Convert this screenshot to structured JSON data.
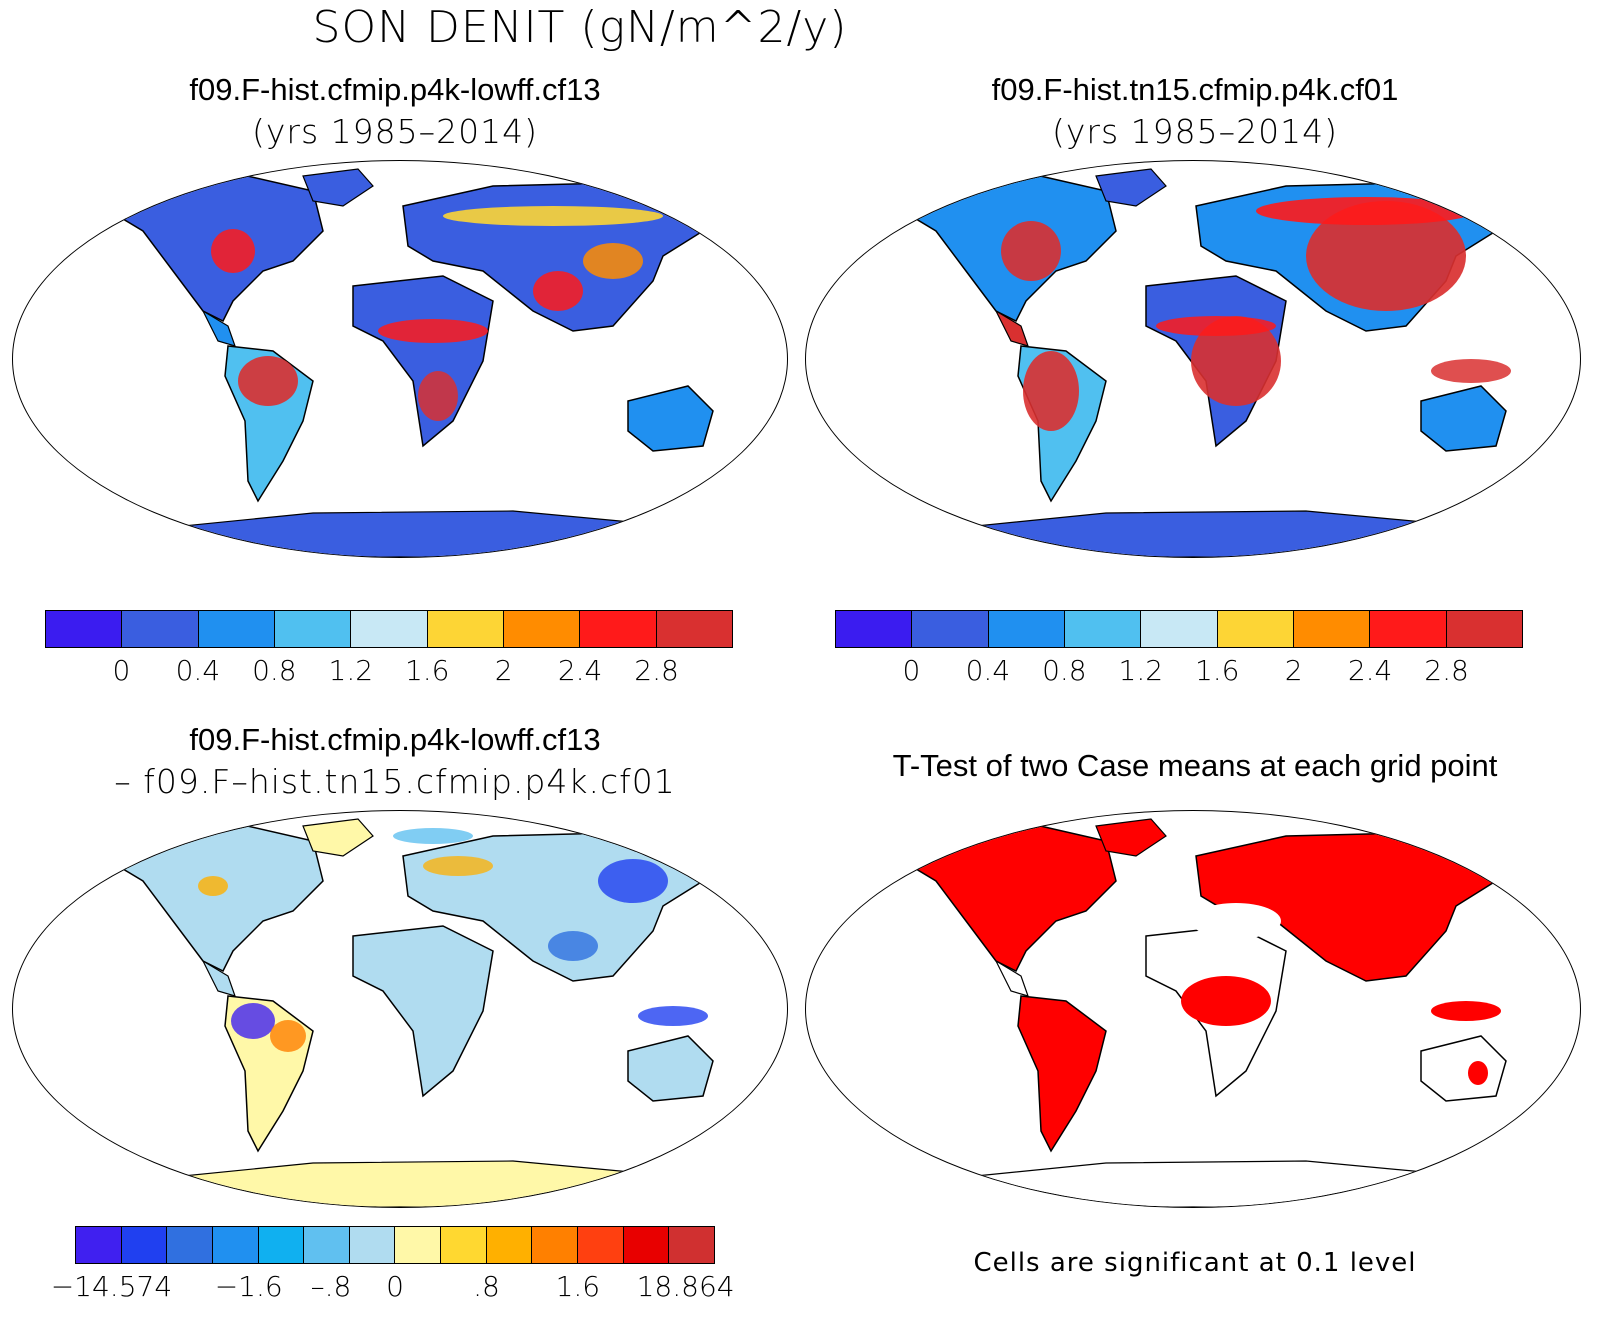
{
  "title": "SON DENIT (gN/m^2/y)",
  "panels": {
    "top_left": {
      "title": "f09.F-hist.cfmip.p4k-lowff.cf13",
      "subtitle": "(yrs 1985–2014)"
    },
    "top_right": {
      "title": "f09.F-hist.tn15.cfmip.p4k.cf01",
      "subtitle": "(yrs 1985–2014)"
    },
    "bottom_left": {
      "title": "f09.F-hist.cfmip.p4k-lowff.cf13",
      "subtitle": "– f09.F–hist.tn15.cfmip.p4k.cf01"
    },
    "bottom_right": {
      "title": "T-Test of two Case means at each grid point",
      "note": "Cells are significant at 0.1 level",
      "significant_color": "#ff0000"
    }
  },
  "colorbars": {
    "abs": {
      "colors": [
        "#3b1cf0",
        "#3a5ee0",
        "#2090f0",
        "#50c0f0",
        "#c8e8f5",
        "#fdd535",
        "#ff8c00",
        "#ff1a1a",
        "#d93030"
      ],
      "labels": [
        "0",
        "0.4",
        "0.8",
        "1.2",
        "1.6",
        "2",
        "2.4",
        "2.8"
      ]
    },
    "diff": {
      "colors": [
        "#4020f0",
        "#2040f0",
        "#3070e0",
        "#2090f0",
        "#10b0f0",
        "#60c0f0",
        "#b0dcf0",
        "#fff8a8",
        "#ffd830",
        "#ffb000",
        "#ff8000",
        "#ff4010",
        "#e80000",
        "#d03030"
      ],
      "labels": [
        "−14.574",
        "−1.6",
        "–.8",
        "0",
        ".8",
        "1.6",
        "18.864"
      ]
    }
  }
}
